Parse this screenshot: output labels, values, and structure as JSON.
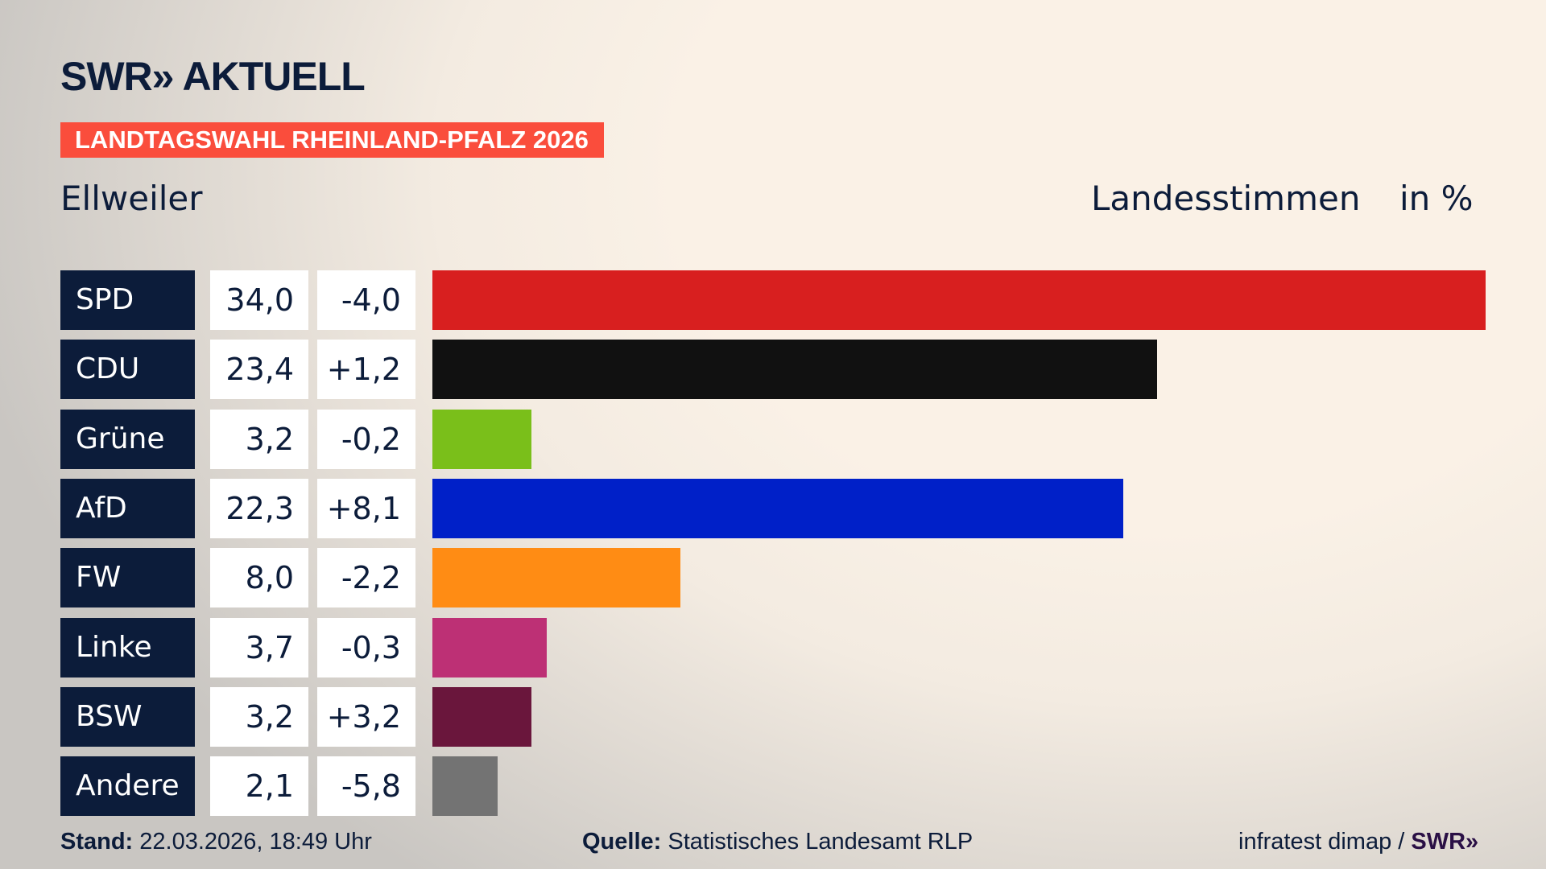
{
  "header": {
    "logo": "SWR» AKTUELL",
    "banner": "LANDTAGSWAHL RHEINLAND-PFALZ 2026",
    "place": "Ellweiler",
    "measure": "Landesstimmen",
    "unit": "in %"
  },
  "chart_data": {
    "type": "bar",
    "orientation": "horizontal",
    "xlim": [
      0,
      34.0
    ],
    "categories": [
      "SPD",
      "CDU",
      "Grüne",
      "AfD",
      "FW",
      "Linke",
      "BSW",
      "Andere"
    ],
    "values": [
      34.0,
      23.4,
      3.2,
      22.3,
      8.0,
      3.7,
      3.2,
      2.1
    ],
    "value_labels": [
      "34,0",
      "23,4",
      "3,2",
      "22,3",
      "8,0",
      "3,7",
      "3,2",
      "2,1"
    ],
    "change_labels": [
      "-4,0",
      "+1,2",
      "-0,2",
      "+8,1",
      "-2,2",
      "-0,3",
      "+3,2",
      "-5,8"
    ],
    "changes": [
      -4.0,
      1.2,
      -0.2,
      8.1,
      -2.2,
      -0.3,
      3.2,
      -5.8
    ],
    "colors": [
      "#d81f1f",
      "#111111",
      "#7abf1a",
      "#0020c8",
      "#ff8c14",
      "#bd3075",
      "#6a163c",
      "#737373"
    ]
  },
  "footer": {
    "stand_label": "Stand:",
    "stand_value": "22.03.2026, 18:49 Uhr",
    "source_label": "Quelle:",
    "source_value": "Statistisches Landesamt RLP",
    "credit": "infratest dimap / ",
    "credit_logo": "SWR»"
  }
}
